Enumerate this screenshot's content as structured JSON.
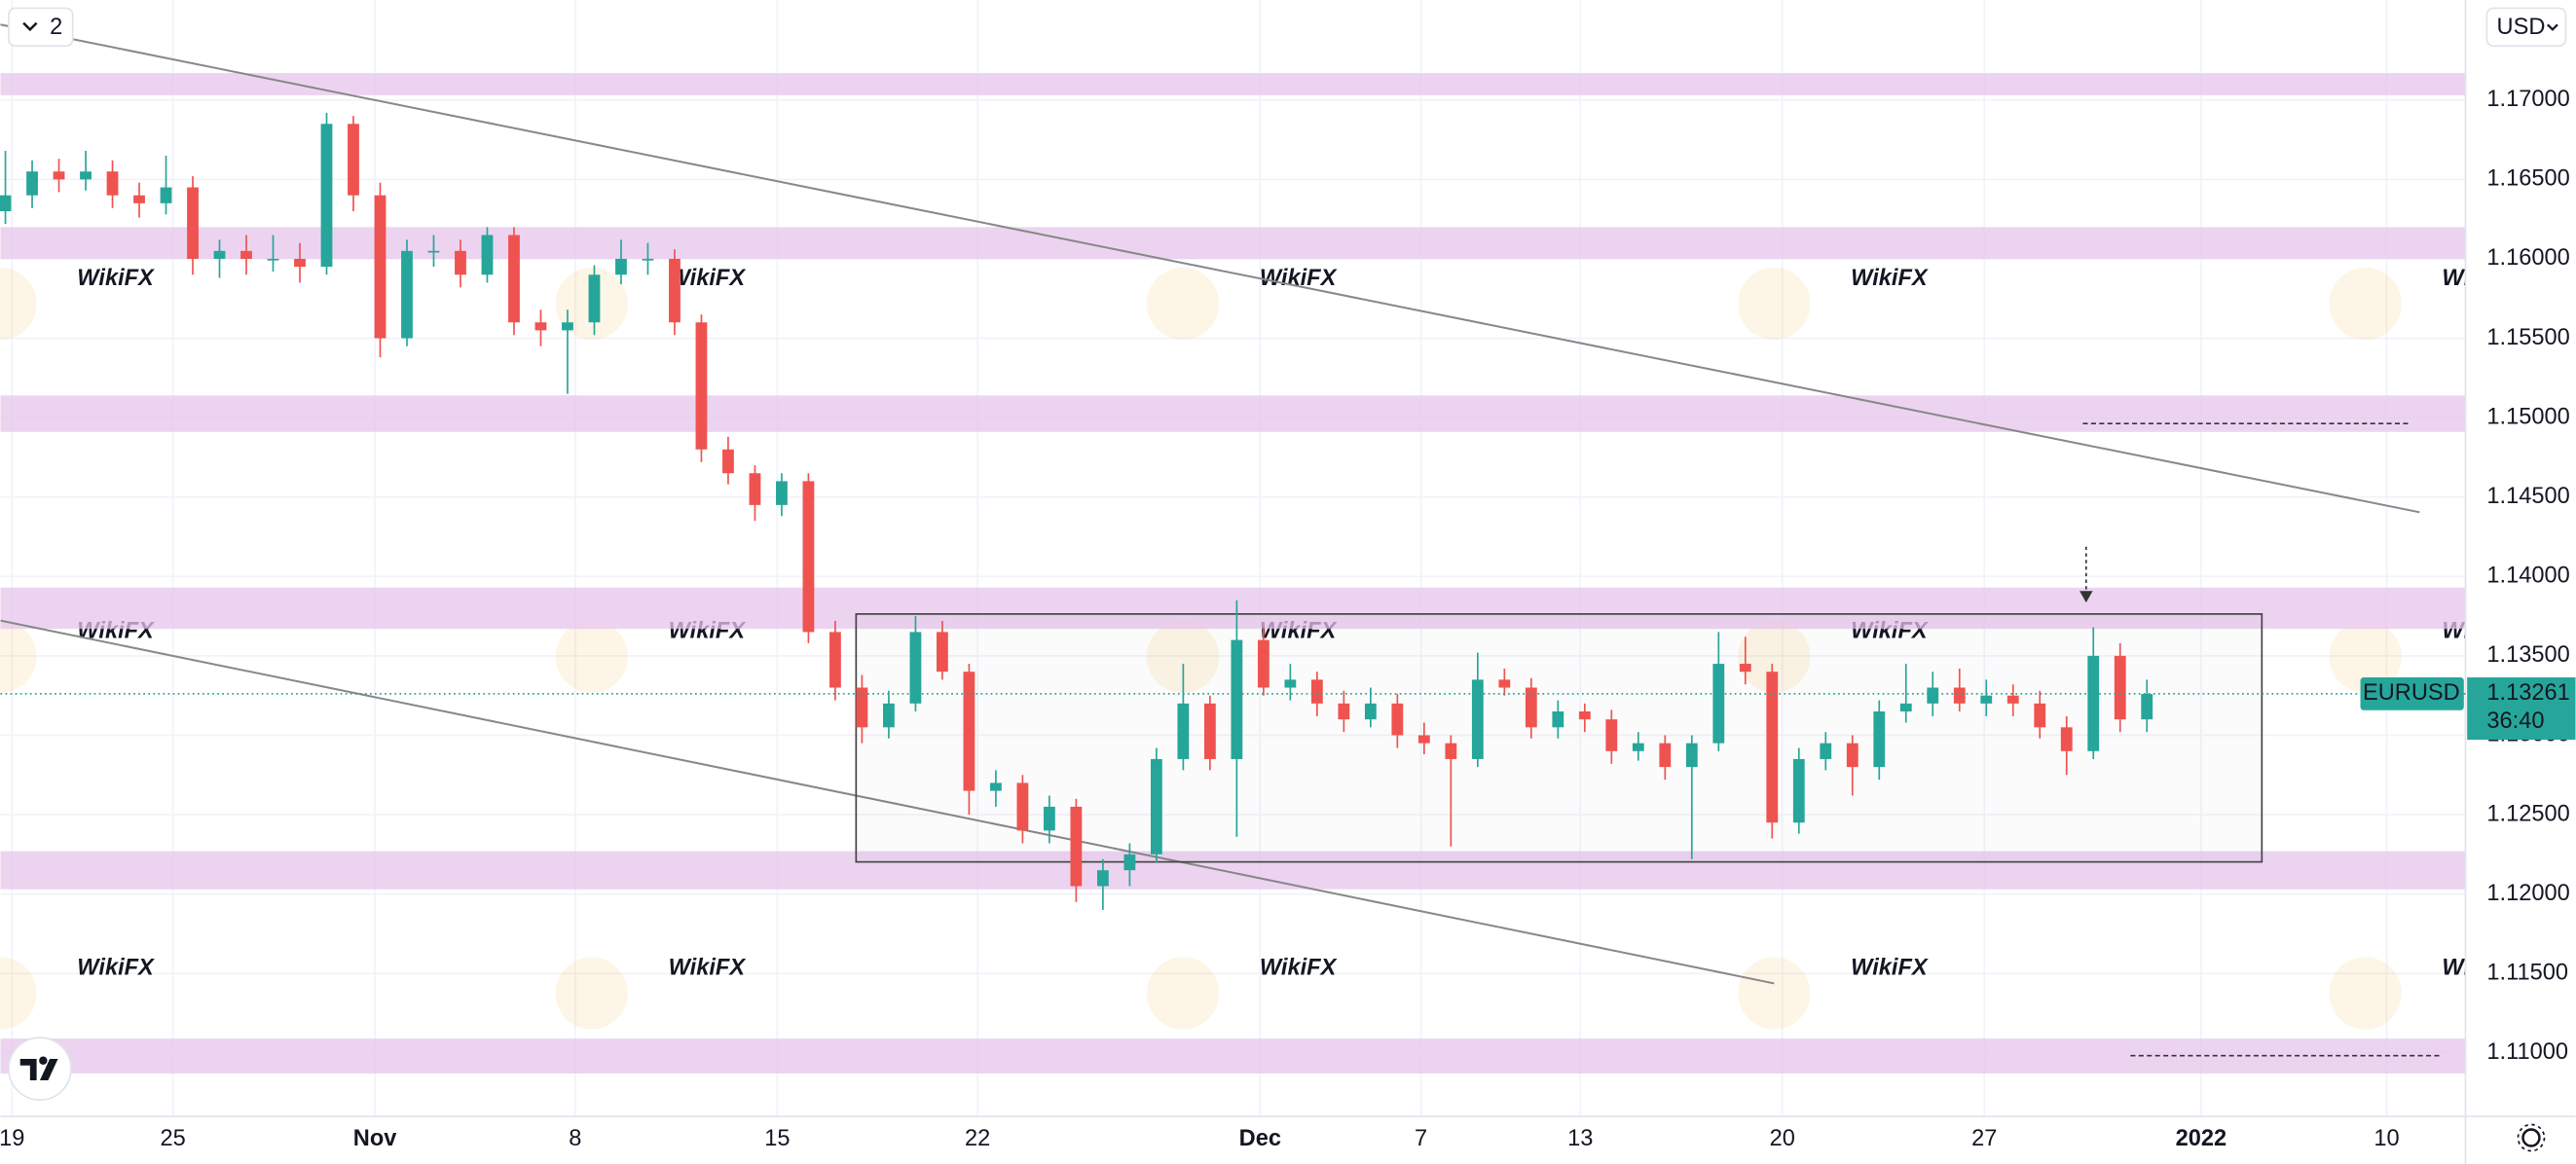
{
  "chart_data": {
    "type": "candlestick",
    "symbol": "EURUSD",
    "currency": "USD",
    "badge": "2",
    "countdown": "36:40",
    "watermark": "WikiFX",
    "up_color": "#26a69a",
    "down_color": "#ef5350",
    "zone_color": "#e6c6ec",
    "grid": true,
    "ylim": [
      1.106,
      1.1763
    ],
    "yticks": [
      {
        "value": 1.11,
        "label": "1.11000"
      },
      {
        "value": 1.115,
        "label": "1.11500"
      },
      {
        "value": 1.12,
        "label": "1.12000"
      },
      {
        "value": 1.125,
        "label": "1.12500"
      },
      {
        "value": 1.13,
        "label": "1.13000"
      },
      {
        "value": 1.135,
        "label": "1.13500"
      },
      {
        "value": 1.14,
        "label": "1.14000"
      },
      {
        "value": 1.145,
        "label": "1.14500"
      },
      {
        "value": 1.15,
        "label": "1.15000"
      },
      {
        "value": 1.155,
        "label": "1.15500"
      },
      {
        "value": 1.16,
        "label": "1.16000"
      },
      {
        "value": 1.165,
        "label": "1.16500"
      },
      {
        "value": 1.17,
        "label": "1.17000"
      }
    ],
    "x_labels": [
      "19",
      "25",
      "Nov",
      "8",
      "15",
      "22",
      "Dec",
      "7",
      "13",
      "20",
      "27",
      "2022",
      "10"
    ],
    "last_price": {
      "value": 1.13261,
      "label": "1.13261"
    },
    "zones": [
      [
        1.1703,
        1.1717
      ],
      [
        1.16,
        1.162
      ],
      [
        1.1491,
        1.1514
      ],
      [
        1.1367,
        1.1393
      ],
      [
        1.1203,
        1.1227
      ],
      [
        1.1087,
        1.1109
      ]
    ],
    "candles": [
      [
        1.163,
        1.1668,
        1.1622,
        1.164
      ],
      [
        1.164,
        1.1662,
        1.1632,
        1.1655
      ],
      [
        1.1655,
        1.1663,
        1.1642,
        1.165
      ],
      [
        1.165,
        1.1668,
        1.1643,
        1.1655
      ],
      [
        1.1655,
        1.1662,
        1.1632,
        1.164
      ],
      [
        1.164,
        1.1648,
        1.1626,
        1.1635
      ],
      [
        1.1635,
        1.1665,
        1.1628,
        1.1645
      ],
      [
        1.1645,
        1.1652,
        1.159,
        1.16
      ],
      [
        1.16,
        1.1612,
        1.1588,
        1.1605
      ],
      [
        1.1605,
        1.1615,
        1.159,
        1.16
      ],
      [
        1.16,
        1.1615,
        1.1592,
        1.16
      ],
      [
        1.16,
        1.161,
        1.1585,
        1.1595
      ],
      [
        1.1595,
        1.1692,
        1.159,
        1.1685
      ],
      [
        1.1685,
        1.169,
        1.163,
        1.164
      ],
      [
        1.164,
        1.1648,
        1.1538,
        1.155
      ],
      [
        1.155,
        1.1612,
        1.1545,
        1.1605
      ],
      [
        1.1605,
        1.1615,
        1.1595,
        1.1605
      ],
      [
        1.1605,
        1.1612,
        1.1582,
        1.159
      ],
      [
        1.159,
        1.162,
        1.1585,
        1.1615
      ],
      [
        1.1615,
        1.162,
        1.1552,
        1.156
      ],
      [
        1.156,
        1.1568,
        1.1545,
        1.1555
      ],
      [
        1.1555,
        1.1568,
        1.1515,
        1.156
      ],
      [
        1.156,
        1.1596,
        1.1552,
        1.159
      ],
      [
        1.159,
        1.1612,
        1.1584,
        1.16
      ],
      [
        1.16,
        1.161,
        1.159,
        1.16
      ],
      [
        1.16,
        1.1606,
        1.1552,
        1.156
      ],
      [
        1.156,
        1.1565,
        1.1472,
        1.148
      ],
      [
        1.148,
        1.1488,
        1.1458,
        1.1465
      ],
      [
        1.1465,
        1.147,
        1.1435,
        1.1445
      ],
      [
        1.1445,
        1.1465,
        1.1438,
        1.146
      ],
      [
        1.146,
        1.1465,
        1.1358,
        1.1365
      ],
      [
        1.1365,
        1.1372,
        1.1322,
        1.133
      ],
      [
        1.133,
        1.1338,
        1.1295,
        1.1305
      ],
      [
        1.1305,
        1.1328,
        1.1298,
        1.132
      ],
      [
        1.132,
        1.1375,
        1.1315,
        1.1365
      ],
      [
        1.1365,
        1.1372,
        1.1335,
        1.134
      ],
      [
        1.134,
        1.1345,
        1.125,
        1.1265
      ],
      [
        1.1265,
        1.1278,
        1.1255,
        1.127
      ],
      [
        1.127,
        1.1275,
        1.1232,
        1.124
      ],
      [
        1.124,
        1.1262,
        1.1232,
        1.1255
      ],
      [
        1.1255,
        1.126,
        1.1195,
        1.1205
      ],
      [
        1.1205,
        1.1222,
        1.119,
        1.1215
      ],
      [
        1.1215,
        1.1232,
        1.1205,
        1.1225
      ],
      [
        1.1225,
        1.1292,
        1.122,
        1.1285
      ],
      [
        1.1285,
        1.1345,
        1.1278,
        1.132
      ],
      [
        1.132,
        1.1325,
        1.1278,
        1.1285
      ],
      [
        1.1285,
        1.1385,
        1.1236,
        1.136
      ],
      [
        1.136,
        1.1368,
        1.1325,
        1.133
      ],
      [
        1.133,
        1.1345,
        1.1322,
        1.1335
      ],
      [
        1.1335,
        1.134,
        1.1312,
        1.132
      ],
      [
        1.132,
        1.1328,
        1.1302,
        1.131
      ],
      [
        1.131,
        1.133,
        1.1305,
        1.132
      ],
      [
        1.132,
        1.1326,
        1.1292,
        1.13
      ],
      [
        1.13,
        1.1308,
        1.1288,
        1.1295
      ],
      [
        1.1295,
        1.13,
        1.123,
        1.1285
      ],
      [
        1.1285,
        1.1352,
        1.128,
        1.1335
      ],
      [
        1.1335,
        1.1342,
        1.1325,
        1.133
      ],
      [
        1.133,
        1.1336,
        1.1298,
        1.1305
      ],
      [
        1.1305,
        1.1322,
        1.1298,
        1.1315
      ],
      [
        1.1315,
        1.132,
        1.1302,
        1.131
      ],
      [
        1.131,
        1.1316,
        1.1282,
        1.129
      ],
      [
        1.129,
        1.1302,
        1.1284,
        1.1295
      ],
      [
        1.1295,
        1.13,
        1.1272,
        1.128
      ],
      [
        1.128,
        1.13,
        1.1222,
        1.1295
      ],
      [
        1.1295,
        1.1365,
        1.129,
        1.1345
      ],
      [
        1.1345,
        1.1362,
        1.1332,
        1.134
      ],
      [
        1.134,
        1.1345,
        1.1235,
        1.1245
      ],
      [
        1.1245,
        1.1292,
        1.1238,
        1.1285
      ],
      [
        1.1285,
        1.1302,
        1.1278,
        1.1295
      ],
      [
        1.1295,
        1.13,
        1.1262,
        1.128
      ],
      [
        1.128,
        1.1322,
        1.1272,
        1.1315
      ],
      [
        1.1315,
        1.1345,
        1.1308,
        1.132
      ],
      [
        1.132,
        1.134,
        1.1312,
        1.133
      ],
      [
        1.133,
        1.1342,
        1.1315,
        1.132
      ],
      [
        1.132,
        1.1335,
        1.1312,
        1.1325
      ],
      [
        1.1325,
        1.1332,
        1.1312,
        1.132
      ],
      [
        1.132,
        1.1328,
        1.1298,
        1.1305
      ],
      [
        1.1305,
        1.1312,
        1.1275,
        1.129
      ],
      [
        1.129,
        1.1368,
        1.1285,
        1.135
      ],
      [
        1.135,
        1.1358,
        1.1302,
        1.131
      ],
      [
        1.131,
        1.1335,
        1.1302,
        1.1326
      ]
    ]
  }
}
